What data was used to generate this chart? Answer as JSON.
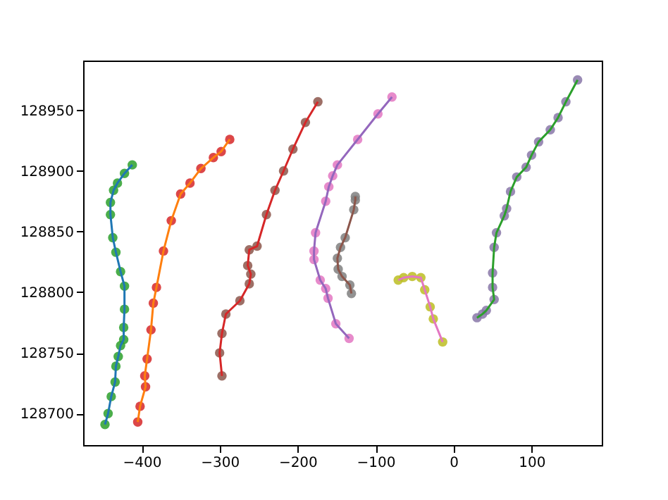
{
  "chart_data": {
    "type": "line",
    "xlim": [
      -475,
      190
    ],
    "ylim": [
      128674,
      128991
    ],
    "xticks": [
      -400,
      -300,
      -200,
      -100,
      0,
      100
    ],
    "yticks": [
      128700,
      128750,
      128800,
      128850,
      128900,
      128950
    ],
    "grid": false,
    "series": [
      {
        "color": "#1f77b4",
        "x": [
          -447,
          -443,
          -439,
          -434,
          -433,
          -430,
          -427,
          -423,
          -423,
          -422,
          -422,
          -427,
          -433,
          -437,
          -440,
          -440,
          -436,
          -431,
          -422,
          -412
        ],
        "values": [
          128691,
          128700,
          128714,
          128726,
          128739,
          128747,
          128756,
          128761,
          128771,
          128786,
          128805,
          128817,
          128833,
          128845,
          128864,
          128874,
          128884,
          128890,
          128898,
          128905
        ]
      },
      {
        "color": "#ff7f0e",
        "x": [
          -405,
          -402,
          -395,
          -396,
          -393,
          -388,
          -385,
          -381,
          -372,
          -362,
          -350,
          -338,
          -324,
          -308,
          -298,
          -287
        ],
        "values": [
          128693,
          128706,
          128722,
          128731,
          128745,
          128769,
          128791,
          128804,
          128834,
          128859,
          128881,
          128890,
          128902,
          128911,
          128916,
          128926
        ]
      },
      {
        "color": "#d62728",
        "x": [
          -297,
          -300,
          -297,
          -292,
          -274,
          -262,
          -260,
          -264,
          -262,
          -252,
          -240,
          -229,
          -218,
          -206,
          -190,
          -174
        ],
        "values": [
          128731,
          128750,
          128766,
          128782,
          128793,
          128807,
          128815,
          128822,
          128835,
          128838,
          128864,
          128884,
          128900,
          128918,
          128940,
          128957
        ]
      },
      {
        "color": "#9467bd",
        "x": [
          -79,
          -97,
          -123,
          -149,
          -155,
          -160,
          -164,
          -177,
          -179,
          -179,
          -171,
          -164,
          -161,
          -151,
          -134
        ],
        "values": [
          128961,
          128947,
          128926,
          128905,
          128896,
          128887,
          128875,
          128849,
          128834,
          128827,
          128810,
          128803,
          128795,
          128774,
          128762
        ]
      },
      {
        "color": "#8c564b",
        "x": [
          -126,
          -126,
          -128,
          -139,
          -145,
          -149,
          -148,
          -143,
          -133,
          -131
        ],
        "values": [
          128879,
          128876,
          128868,
          128845,
          128837,
          128828,
          128819,
          128813,
          128806,
          128799
        ]
      },
      {
        "color": "#e377c2",
        "x": [
          -71,
          -64,
          -53,
          -42,
          -37,
          -30,
          -26,
          -14
        ],
        "values": [
          128810,
          128812,
          128813,
          128812,
          128802,
          128788,
          128778,
          128759
        ]
      },
      {
        "color": "#2ca02c",
        "x": [
          30,
          37,
          42,
          52,
          50,
          50,
          52,
          55,
          65,
          68,
          73,
          81,
          93,
          100,
          109,
          124,
          134,
          144,
          159
        ],
        "values": [
          128779,
          128782,
          128785,
          128794,
          128804,
          128816,
          128837,
          128849,
          128863,
          128869,
          128883,
          128895,
          128903,
          128913,
          128924,
          128934,
          128944,
          128957,
          128975
        ]
      },
      {
        "type": "scatter",
        "color": "#2ca02c",
        "x": [
          -447,
          -443,
          -439,
          -434,
          -433,
          -430,
          -427,
          -423,
          -423,
          -422,
          -422,
          -427,
          -433,
          -437,
          -440,
          -440,
          -436,
          -431,
          -422,
          -412
        ],
        "values": [
          128691,
          128700,
          128714,
          128726,
          128739,
          128747,
          128756,
          128761,
          128771,
          128786,
          128805,
          128817,
          128833,
          128845,
          128864,
          128874,
          128884,
          128890,
          128898,
          128905
        ]
      },
      {
        "type": "scatter",
        "color": "#d62728",
        "x": [
          -405,
          -402,
          -395,
          -396,
          -393,
          -388,
          -385,
          -381,
          -372,
          -362,
          -350,
          -338,
          -324,
          -308,
          -298,
          -287
        ],
        "values": [
          128693,
          128706,
          128722,
          128731,
          128745,
          128769,
          128791,
          128804,
          128834,
          128859,
          128881,
          128890,
          128902,
          128911,
          128916,
          128926
        ]
      },
      {
        "type": "scatter",
        "color": "#8c564b",
        "x": [
          -297,
          -300,
          -297,
          -292,
          -274,
          -262,
          -260,
          -264,
          -262,
          -252,
          -240,
          -229,
          -218,
          -206,
          -190,
          -174
        ],
        "values": [
          128731,
          128750,
          128766,
          128782,
          128793,
          128807,
          128815,
          128822,
          128835,
          128838,
          128864,
          128884,
          128900,
          128918,
          128940,
          128957
        ]
      },
      {
        "type": "scatter",
        "color": "#e377c2",
        "x": [
          -79,
          -97,
          -123,
          -149,
          -155,
          -160,
          -164,
          -177,
          -179,
          -179,
          -171,
          -164,
          -161,
          -151,
          -134
        ],
        "values": [
          128961,
          128947,
          128926,
          128905,
          128896,
          128887,
          128875,
          128849,
          128834,
          128827,
          128810,
          128803,
          128795,
          128774,
          128762
        ]
      },
      {
        "type": "scatter",
        "color": "#7f7f7f",
        "x": [
          -126,
          -126,
          -128,
          -139,
          -145,
          -149,
          -148,
          -143,
          -133,
          -131
        ],
        "values": [
          128879,
          128876,
          128868,
          128845,
          128837,
          128828,
          128819,
          128813,
          128806,
          128799
        ]
      },
      {
        "type": "scatter",
        "color": "#bcbd22",
        "x": [
          -71,
          -64,
          -53,
          -42,
          -37,
          -30,
          -26,
          -14
        ],
        "values": [
          128810,
          128812,
          128813,
          128812,
          128802,
          128788,
          128778,
          128759
        ]
      },
      {
        "type": "scatter",
        "color": "#8877a8",
        "x": [
          30,
          37,
          42,
          52,
          50,
          50,
          52,
          55,
          65,
          68,
          73,
          81,
          93,
          100,
          109,
          124,
          134,
          144,
          159
        ],
        "values": [
          128779,
          128782,
          128785,
          128794,
          128804,
          128816,
          128837,
          128849,
          128863,
          128869,
          128883,
          128895,
          128903,
          128913,
          128924,
          128934,
          128944,
          128957,
          128975
        ]
      }
    ]
  }
}
